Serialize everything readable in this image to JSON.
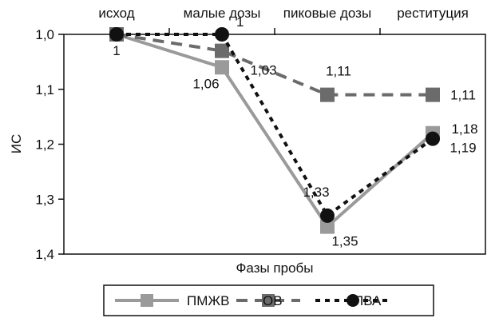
{
  "chart_data": {
    "type": "line",
    "categories": [
      "исход",
      "малые дозы",
      "пиковые дозы",
      "реституция"
    ],
    "xlabel": "Фазы пробы",
    "ylabel": "ИС",
    "ylim": [
      1.0,
      1.4
    ],
    "y_inverted": true,
    "y_ticks": [
      "1,0",
      "1,1",
      "1,2",
      "1,3",
      "1,4"
    ],
    "grid": false,
    "legend_position": "bottom",
    "series": [
      {
        "name": "ПМЖВ",
        "values": [
          1.0,
          1.06,
          1.35,
          1.18
        ],
        "color": "#9a9a9a",
        "line": "solid",
        "marker": "square"
      },
      {
        "name": "ОВ",
        "values": [
          1.0,
          1.03,
          1.11,
          1.11
        ],
        "color": "#6b6b6b",
        "line": "dashed",
        "marker": "square"
      },
      {
        "name": "ПВА",
        "values": [
          1.0,
          1.0,
          1.33,
          1.19
        ],
        "color": "#111111",
        "line": "dotted",
        "marker": "circle"
      }
    ],
    "annotations": [
      {
        "text": "1",
        "series": 0,
        "index": 0
      },
      {
        "text": "1,06",
        "series": 0,
        "index": 1
      },
      {
        "text": "1,35",
        "series": 0,
        "index": 2
      },
      {
        "text": "1,18",
        "series": 0,
        "index": 3
      },
      {
        "text": "1,03",
        "series": 1,
        "index": 1
      },
      {
        "text": "1,11",
        "series": 1,
        "index": 2
      },
      {
        "text": "1,11",
        "series": 1,
        "index": 3
      },
      {
        "text": "1",
        "series": 2,
        "index": 1
      },
      {
        "text": "1,33",
        "series": 2,
        "index": 2
      },
      {
        "text": "1,19",
        "series": 2,
        "index": 3
      }
    ]
  }
}
